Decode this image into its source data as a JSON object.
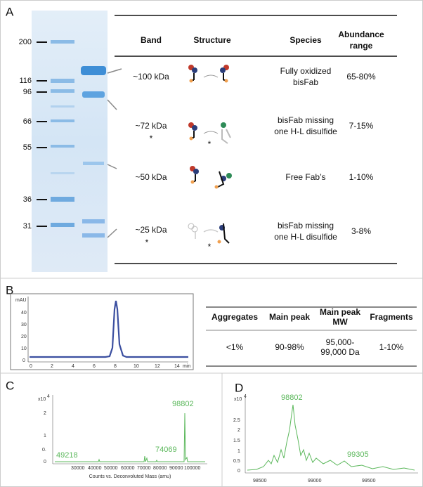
{
  "panel_a": {
    "label": "A",
    "markers": [
      "200",
      "116",
      "96",
      "66",
      "55",
      "36",
      "31"
    ],
    "table": {
      "headers": {
        "band": "Band",
        "structure": "Structure",
        "species": "Species",
        "abundance": [
          "Abundance",
          "range"
        ]
      },
      "rows": [
        {
          "band": "~100 kDa",
          "species": [
            "Fully oxidized",
            "bisFab"
          ],
          "abundance": "65-80%"
        },
        {
          "band": "~72 kDa",
          "band_mark": "*",
          "structure_mark": "*",
          "species": [
            "bisFab missing",
            "one H-L disulfide"
          ],
          "abundance": "7-15%"
        },
        {
          "band": "~50 kDa",
          "species": [
            "Free Fab’s"
          ],
          "abundance": "1-10%"
        },
        {
          "band": "~25 kDa",
          "band_mark": "*",
          "structure_mark": "*",
          "species": [
            "bisFab missing",
            "one H-L disulfide"
          ],
          "abundance": "3-8%"
        }
      ]
    }
  },
  "panel_b": {
    "label": "B",
    "y_unit": "mAU",
    "yticks": [
      "40",
      "30",
      "20",
      "10",
      "0"
    ],
    "xticks": [
      "0",
      "2",
      "4",
      "6",
      "8",
      "10",
      "12",
      "14"
    ],
    "x_unit": "min",
    "table": {
      "headers": [
        "Aggregates",
        "Main peak",
        [
          "Main peak",
          "MW"
        ],
        "Fragments"
      ],
      "row": [
        "<1%",
        "90-98%",
        [
          "95,000-",
          "99,000 Da"
        ],
        "1-10%"
      ]
    }
  },
  "panel_c": {
    "label": "C",
    "scale": "x10",
    "scale_exp": "4",
    "yticks": [
      "2",
      "1",
      "0.",
      "0"
    ],
    "xticks": [
      "30000",
      "40000",
      "50000",
      "60000",
      "70000",
      "80000",
      "90000",
      "100000"
    ],
    "xlabel": "Counts vs. Deconvoluted Mass (amu)",
    "peaks": [
      "98802",
      "74069",
      "49218"
    ]
  },
  "panel_d": {
    "label": "D",
    "scale": "x10",
    "scale_exp": "4",
    "yticks": [
      "2.5",
      "2",
      "1.5",
      "1",
      "0.5",
      "0"
    ],
    "xticks": [
      "98500",
      "99000",
      "99500"
    ],
    "peaks": [
      "98802",
      "99305"
    ]
  }
}
